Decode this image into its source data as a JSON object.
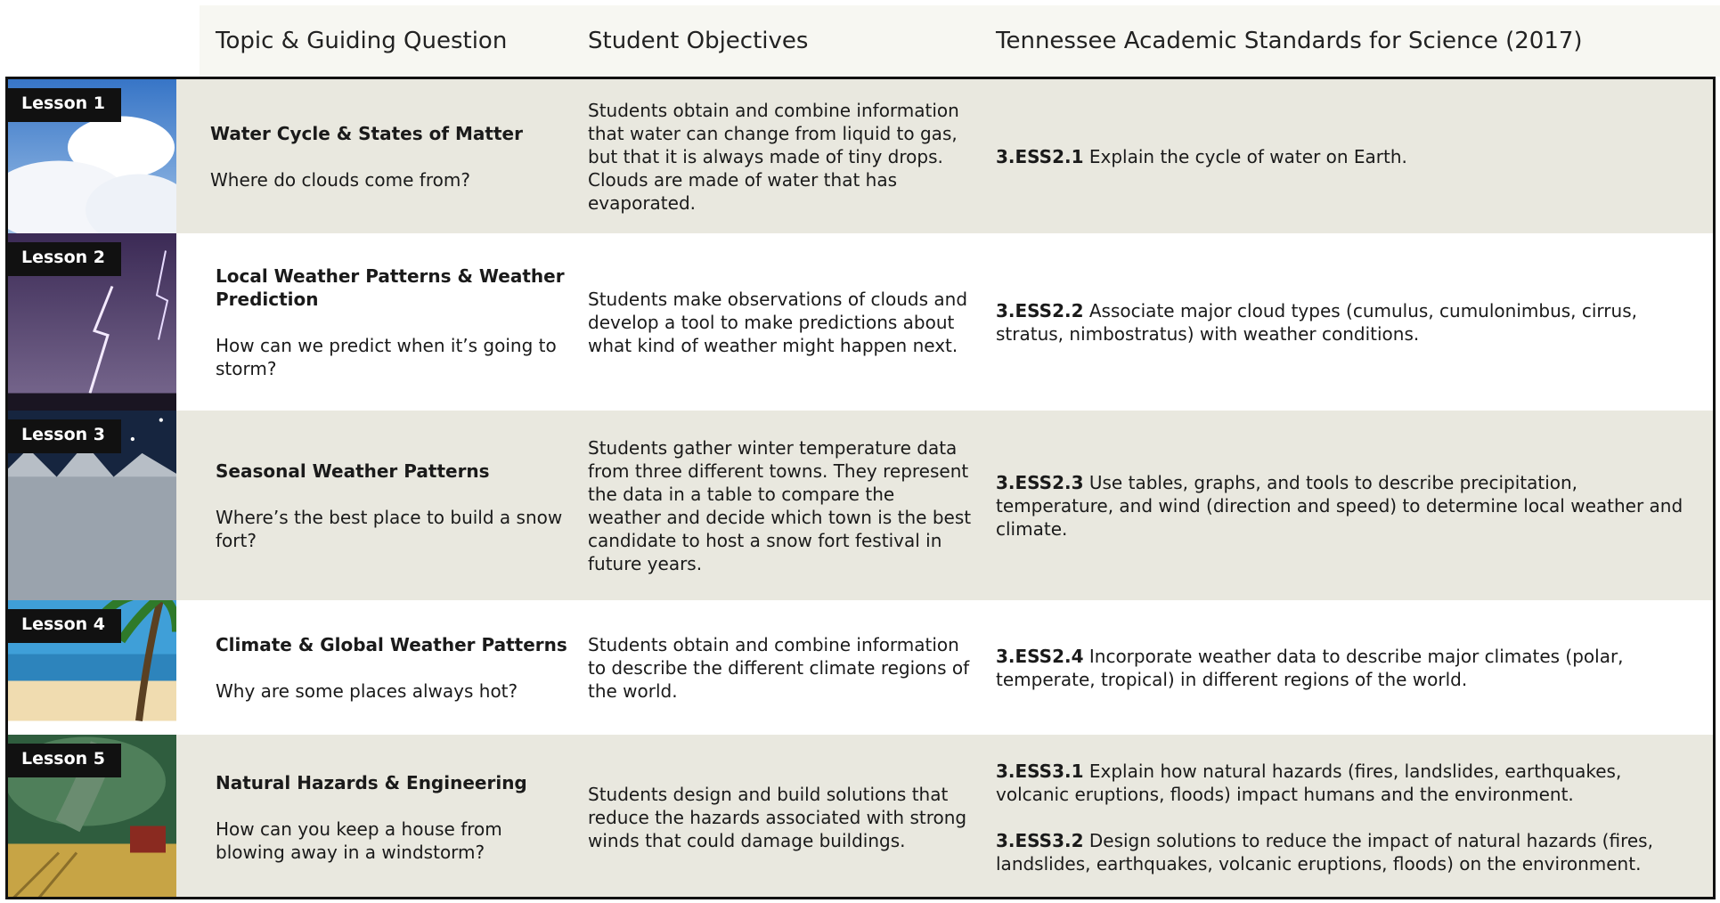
{
  "header": {
    "columns": [
      "Topic & Guiding Question",
      "Student Objectives",
      "Tennessee Academic Standards for Science (2017)"
    ]
  },
  "lessons": [
    {
      "label": "Lesson 1",
      "topic": "Water Cycle & States of Matter",
      "question": "Where do clouds come from?",
      "objectives": "Students obtain and combine information that water can change from liquid to gas, but that it is always made of tiny drops. Clouds are made of water that has evaporated.",
      "standards": [
        {
          "code": "3.ESS2.1",
          "text": "Explain the cycle of water on Earth."
        }
      ]
    },
    {
      "label": "Lesson 2",
      "topic": "Local Weather Patterns & Weather Prediction",
      "question": "How can we predict when it’s going to storm?",
      "objectives": "Students make observations of clouds and develop a tool to make predictions about what kind of weather might happen next.",
      "standards": [
        {
          "code": "3.ESS2.2",
          "text": "Associate major cloud types (cumulus, cumulonimbus, cirrus, stratus, nimbostratus) with weather conditions."
        }
      ]
    },
    {
      "label": "Lesson 3",
      "topic": "Seasonal Weather Patterns",
      "question": "Where’s the best place to build a snow fort?",
      "objectives": "Students gather winter temperature data from three different towns. They represent the data in a table to compare the weather and decide which town is the best candidate to host a snow fort festival in future years.",
      "standards": [
        {
          "code": "3.ESS2.3",
          "text": "Use tables, graphs, and tools to describe precipitation, temperature, and wind (direction and speed) to determine local weather and climate."
        }
      ]
    },
    {
      "label": "Lesson 4",
      "topic": "Climate  & Global Weather Patterns",
      "question": "Why are some places always hot?",
      "objectives": "Students obtain and combine information to describe the different climate regions of the world.",
      "standards": [
        {
          "code": "3.ESS2.4",
          "text": "Incorporate weather data to describe major climates (polar, temperate, tropical) in different regions of the world."
        }
      ]
    },
    {
      "label": "Lesson 5",
      "topic": "Natural Hazards & Engineering",
      "question": "How can you keep a house from blowing away in a windstorm?",
      "objectives": "Students design and build solutions that reduce the hazards associated with strong winds that could damage buildings.",
      "standards": [
        {
          "code": "3.ESS3.1",
          "text": "Explain how natural hazards (fires, landslides, earthquakes, volcanic eruptions, floods) impact humans and the environment."
        },
        {
          "code": "3.ESS3.2",
          "text": "Design solutions to reduce the impact of natural hazards (fires, landslides, earthquakes, volcanic eruptions, floods) on the environment."
        }
      ]
    }
  ]
}
